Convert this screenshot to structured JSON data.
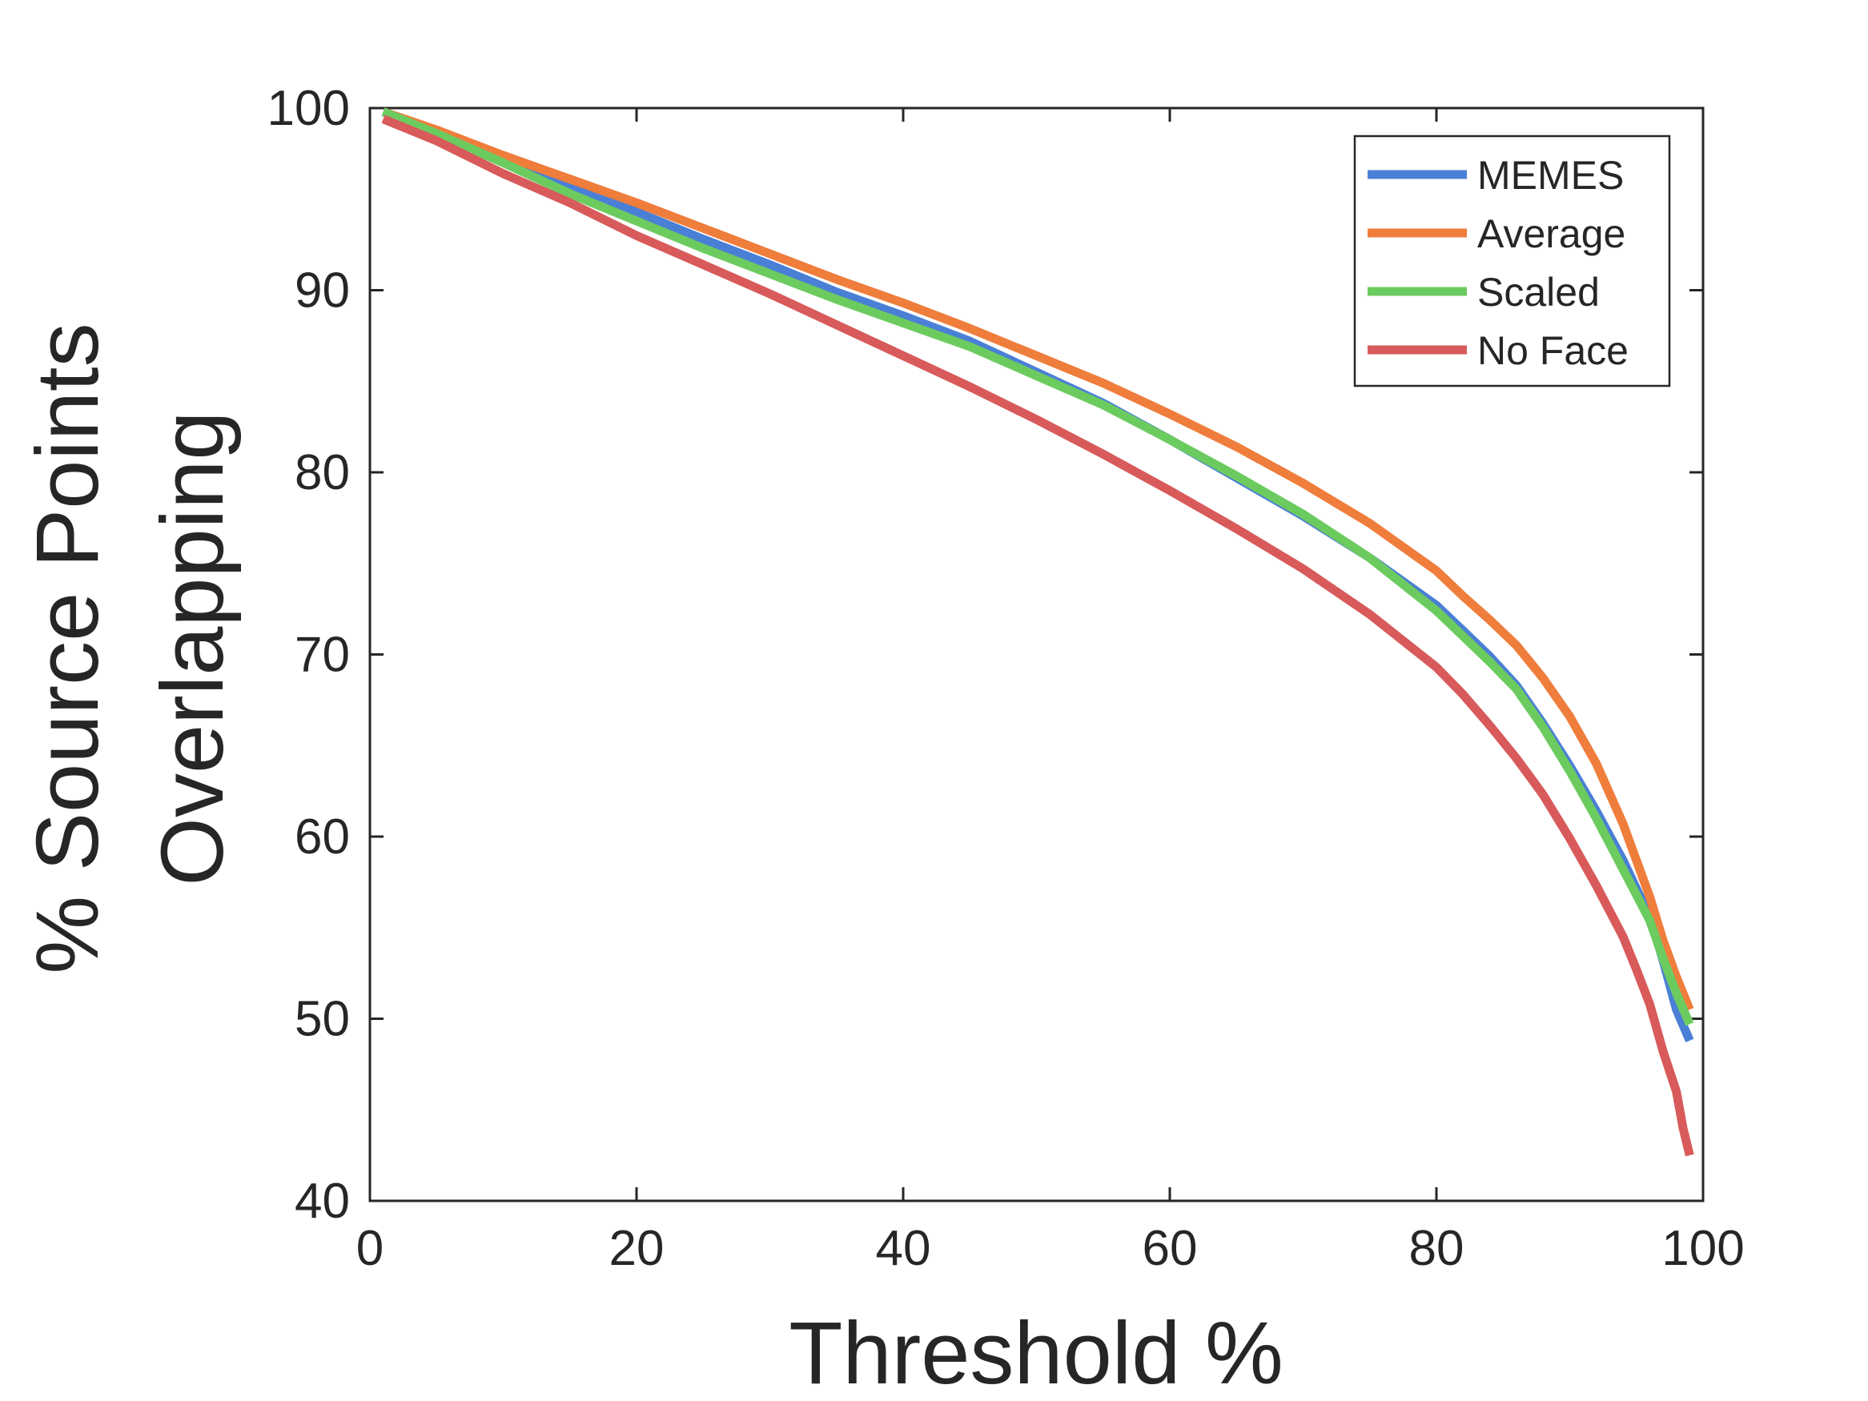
{
  "chart_data": {
    "type": "line",
    "title": "",
    "xlabel": "Threshold %",
    "ylabel": [
      "% Source Points",
      "Overlapping"
    ],
    "xlim": [
      0,
      100
    ],
    "ylim": [
      40,
      100
    ],
    "xticks": [
      0,
      20,
      40,
      60,
      80,
      100
    ],
    "yticks": [
      40,
      50,
      60,
      70,
      80,
      90,
      100
    ],
    "grid": false,
    "legend_position": "top-right",
    "series": [
      {
        "name": "MEMES",
        "color": "#4a7fd6",
        "x": [
          1,
          5,
          10,
          15,
          20,
          25,
          30,
          35,
          40,
          45,
          50,
          55,
          60,
          65,
          70,
          75,
          80,
          82,
          84,
          86,
          88,
          90,
          92,
          94,
          96,
          97,
          98,
          99
        ],
        "y": [
          99.8,
          98.7,
          97.3,
          95.7,
          94.3,
          92.8,
          91.4,
          89.9,
          88.6,
          87.2,
          85.5,
          83.8,
          81.8,
          79.7,
          77.6,
          75.3,
          72.7,
          71.3,
          69.9,
          68.3,
          66.2,
          63.9,
          61.4,
          58.7,
          55.6,
          53.2,
          50.5,
          48.8
        ]
      },
      {
        "name": "Average",
        "color": "#ef7d3c",
        "x": [
          1,
          5,
          10,
          15,
          20,
          25,
          30,
          35,
          40,
          45,
          50,
          55,
          60,
          65,
          70,
          75,
          80,
          82,
          84,
          86,
          88,
          90,
          92,
          94,
          96,
          97,
          98,
          99
        ],
        "y": [
          99.8,
          98.8,
          97.4,
          96.1,
          94.8,
          93.4,
          92.0,
          90.6,
          89.3,
          87.9,
          86.4,
          84.9,
          83.2,
          81.4,
          79.4,
          77.2,
          74.6,
          73.2,
          71.9,
          70.5,
          68.7,
          66.6,
          64.0,
          60.7,
          56.7,
          54.3,
          52.3,
          50.5
        ]
      },
      {
        "name": "Scaled",
        "color": "#6ccb5f",
        "x": [
          1,
          5,
          10,
          15,
          20,
          25,
          30,
          35,
          40,
          45,
          50,
          55,
          60,
          65,
          70,
          75,
          80,
          82,
          84,
          86,
          88,
          90,
          92,
          94,
          96,
          97,
          98,
          99
        ],
        "y": [
          99.8,
          98.6,
          97.0,
          95.3,
          93.8,
          92.3,
          90.9,
          89.5,
          88.2,
          86.9,
          85.3,
          83.7,
          81.8,
          79.8,
          77.7,
          75.3,
          72.4,
          71.0,
          69.6,
          68.1,
          66.0,
          63.6,
          61.0,
          58.2,
          55.4,
          53.3,
          51.4,
          49.7
        ]
      },
      {
        "name": "No Face",
        "color": "#d85a5a",
        "x": [
          1,
          5,
          10,
          15,
          20,
          25,
          30,
          35,
          40,
          45,
          50,
          55,
          60,
          65,
          70,
          75,
          80,
          82,
          84,
          86,
          88,
          90,
          92,
          94,
          95,
          96,
          97,
          98,
          98.5,
          99
        ],
        "y": [
          99.4,
          98.2,
          96.4,
          94.8,
          93.0,
          91.4,
          89.8,
          88.1,
          86.4,
          84.7,
          82.9,
          81.0,
          79.0,
          76.9,
          74.7,
          72.2,
          69.3,
          67.8,
          66.1,
          64.3,
          62.3,
          59.9,
          57.3,
          54.5,
          52.7,
          50.8,
          48.2,
          46.0,
          44.0,
          42.5
        ]
      }
    ]
  }
}
